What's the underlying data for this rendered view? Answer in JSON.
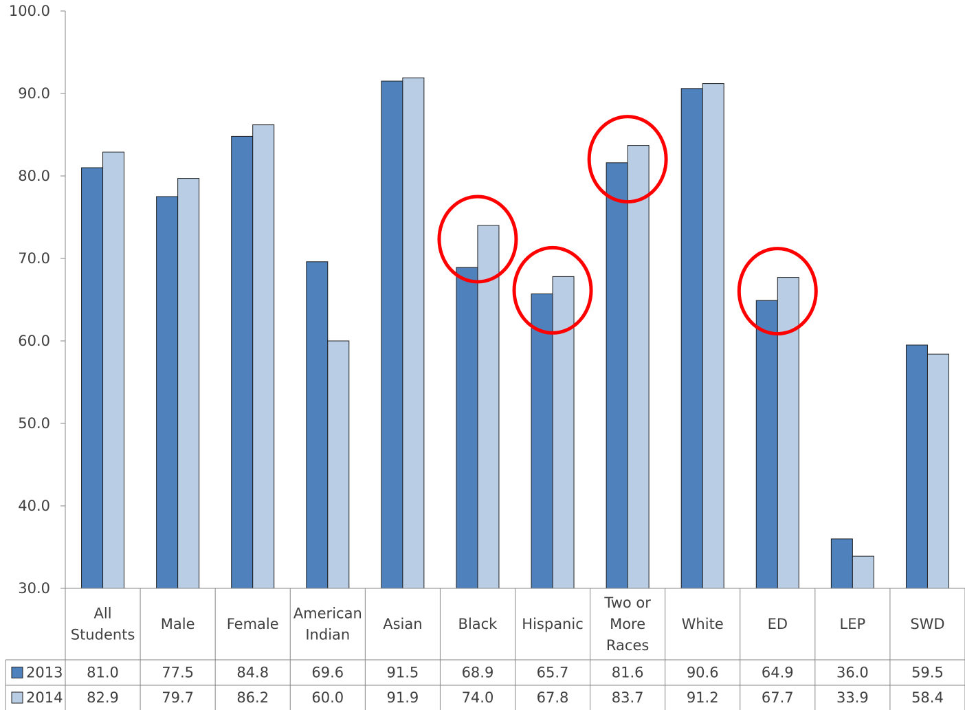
{
  "chart_data": {
    "type": "bar",
    "categories": [
      "All Students",
      "Male",
      "Female",
      "American Indian",
      "Asian",
      "Black",
      "Hispanic",
      "Two or More Races",
      "White",
      "ED",
      "LEP",
      "SWD"
    ],
    "category_lines": [
      [
        "All",
        "Students"
      ],
      [
        "Male"
      ],
      [
        "Female"
      ],
      [
        "American",
        "Indian"
      ],
      [
        "Asian"
      ],
      [
        "Black"
      ],
      [
        "Hispanic"
      ],
      [
        "Two or",
        "More",
        "Races"
      ],
      [
        "White"
      ],
      [
        "ED"
      ],
      [
        "LEP"
      ],
      [
        "SWD"
      ]
    ],
    "series": [
      {
        "name": "2013",
        "color": "#4F81BD",
        "values": [
          81.0,
          77.5,
          84.8,
          69.6,
          91.5,
          68.9,
          65.7,
          81.6,
          90.6,
          64.9,
          36.0,
          59.5
        ],
        "labels": [
          "81.0",
          "77.5",
          "84.8",
          "69.6",
          "91.5",
          "68.9",
          "65.7",
          "81.6",
          "90.6",
          "64.9",
          "36.0",
          "59.5"
        ]
      },
      {
        "name": "2014",
        "color": "#B9CDE5",
        "values": [
          82.9,
          79.7,
          86.2,
          60.0,
          91.9,
          74.0,
          67.8,
          83.7,
          91.2,
          67.7,
          33.9,
          58.4
        ],
        "labels": [
          "82.9",
          "79.7",
          "86.2",
          "60.0",
          "91.9",
          "74.0",
          "67.8",
          "83.7",
          "91.2",
          "67.7",
          "33.9",
          "58.4"
        ]
      }
    ],
    "ylim": [
      30,
      100
    ],
    "yticks": [
      "30.0",
      "40.0",
      "50.0",
      "60.0",
      "70.0",
      "80.0",
      "90.0",
      "100.0"
    ],
    "legend": "data-table",
    "annotations": [
      {
        "type": "circle",
        "category": "Black",
        "color": "#FF0000"
      },
      {
        "type": "circle",
        "category": "Hispanic",
        "color": "#FF0000"
      },
      {
        "type": "circle",
        "category": "Two or More Races",
        "color": "#FF0000"
      },
      {
        "type": "circle",
        "category": "ED",
        "color": "#FF0000"
      }
    ],
    "grid": false
  }
}
